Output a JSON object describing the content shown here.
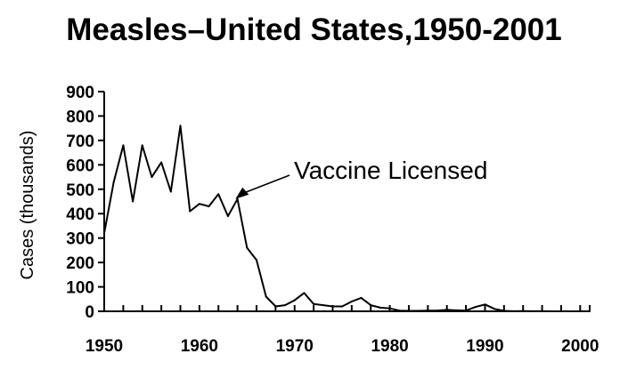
{
  "chart_data": {
    "type": "line",
    "title": "Measles–United States,1950-2001",
    "xlabel": "",
    "ylabel": "Cases (thousands)",
    "xlim": [
      1950,
      2001
    ],
    "ylim": [
      0,
      900
    ],
    "x_ticks": [
      "1950",
      "1960",
      "1970",
      "1980",
      "1990",
      "2000"
    ],
    "y_ticks": [
      "0",
      "100",
      "200",
      "300",
      "400",
      "500",
      "600",
      "700",
      "800",
      "900"
    ],
    "grid": false,
    "series": [
      {
        "x": [
          1950,
          1951,
          1952,
          1953,
          1954,
          1955,
          1956,
          1957,
          1958,
          1959,
          1960,
          1961,
          1962,
          1963,
          1964,
          1965,
          1966,
          1967,
          1968,
          1969,
          1970,
          1971,
          1972,
          1973,
          1974,
          1975,
          1976,
          1977,
          1978,
          1979,
          1980,
          1981,
          1982,
          1983,
          1984,
          1985,
          1986,
          1987,
          1988,
          1989,
          1990,
          1991,
          1992,
          1993,
          1994,
          1995,
          1996,
          1997,
          1998,
          1999,
          2000,
          2001
        ],
        "y": [
          320,
          530,
          680,
          450,
          680,
          550,
          610,
          490,
          760,
          410,
          440,
          430,
          480,
          390,
          460,
          260,
          210,
          60,
          20,
          25,
          45,
          75,
          30,
          25,
          20,
          20,
          40,
          55,
          25,
          15,
          12,
          3,
          2,
          2,
          3,
          3,
          6,
          4,
          3,
          18,
          28,
          10,
          2,
          0.5,
          1,
          0.3,
          0.5,
          0.1,
          0.1,
          0.1,
          0.1,
          0.1
        ]
      }
    ],
    "annotations": [
      {
        "text": "Vaccine Licensed",
        "x": 1963.5,
        "y": 460
      }
    ]
  }
}
